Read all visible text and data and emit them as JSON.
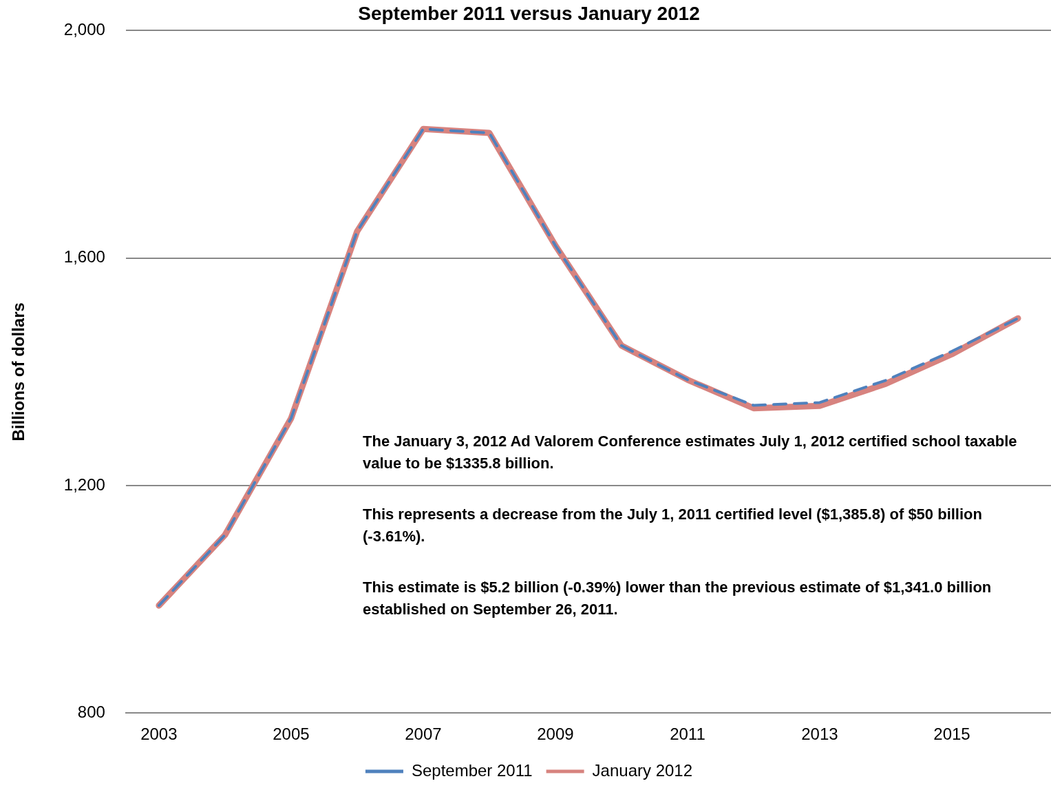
{
  "chart_data": {
    "type": "line",
    "title": "September 2011 versus January 2012",
    "ylabel": "Billions of dollars",
    "categories": [
      "2003",
      null,
      "2005",
      null,
      "2007",
      null,
      "2009",
      null,
      "2011",
      null,
      "2013",
      null,
      "2015",
      null
    ],
    "series": [
      {
        "name": "September 2011",
        "color": "#4f81bd",
        "line_style": "dashed",
        "values": [
          989,
          1113,
          1318,
          1647,
          1827,
          1820,
          1622,
          1446,
          1386,
          1341,
          1346,
          1385,
          1436,
          1494
        ]
      },
      {
        "name": "January 2012",
        "color": "#d7837f",
        "line_style": "solid",
        "values": [
          989,
          1113,
          1318,
          1647,
          1827,
          1820,
          1622,
          1446,
          1386,
          1336,
          1340,
          1379,
          1431,
          1494
        ]
      }
    ],
    "ylim": [
      800,
      2000
    ],
    "yticks": [
      {
        "value": 800,
        "label": "800"
      },
      {
        "value": 1200,
        "label": "1,200"
      },
      {
        "value": 1600,
        "label": "1,600"
      },
      {
        "value": 2000,
        "label": "2,000"
      }
    ],
    "grid": "y",
    "legend": "bottom",
    "marker": "none",
    "annotations": [
      "The January 3, 2012 Ad Valorem Conference estimates  July 1, 2012 certified school taxable value to be $1335.8 billion.",
      "This represents a decrease from the  July 1, 2011 certified level ($1,385.8) of $50 billion (-3.61%).",
      "This estimate is $5.2 billion (-0.39%) lower than the previous estimate of $1,341.0 billion established on September 26, 2011."
    ]
  }
}
